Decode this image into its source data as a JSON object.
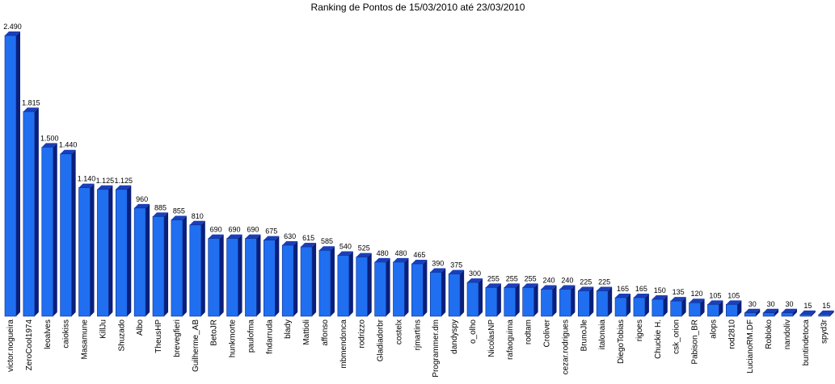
{
  "chart_data": {
    "type": "bar",
    "title": "Ranking de Pontos de 15/03/2010 até 23/03/2010",
    "xlabel": "",
    "ylabel": "",
    "ylim": [
      0,
      2490
    ],
    "grid": false,
    "legend": "none",
    "bar_color": "#1f6ff0",
    "bar_top_color": "#1a3fb8",
    "bar_side_color": "#0a1f7a",
    "categories": [
      "victor.nogueira",
      "ZeroCool1974",
      "leoalves",
      "caiokiss",
      "Masamune",
      "KillJu",
      "Shuzado",
      "Albo",
      "TheusHP",
      "brevegfieri",
      "Guilherme_AB",
      "BetoJR",
      "hunkmorte",
      "paulofma",
      "fndarruda",
      "blady",
      "Mattioli",
      "affonso",
      "mbmendonca",
      "rodrizzo",
      "Gladiadorbr",
      "costelx",
      "rjmartins",
      "Programmer.dm",
      "dandyspy",
      "o_olho",
      "NicolasNP",
      "rafaoguima",
      "rodtam",
      "Croliver",
      "cezar.rodrigues",
      "BrunoJle",
      "italonaia",
      "DiegoTobias",
      "rigoes",
      "Chuckie H.",
      "csk_orion",
      "Pabison_BR",
      "alops",
      "rod2810",
      "LucianoRM.DF",
      "Robloko",
      "nandoliv",
      "buntindetoca",
      "spyd3r"
    ],
    "values": [
      2490,
      1815,
      1500,
      1440,
      1140,
      1125,
      1125,
      960,
      885,
      855,
      810,
      690,
      690,
      690,
      675,
      630,
      615,
      585,
      540,
      525,
      480,
      480,
      465,
      390,
      375,
      300,
      255,
      255,
      255,
      240,
      240,
      225,
      225,
      165,
      165,
      150,
      135,
      120,
      105,
      105,
      30,
      30,
      30,
      15,
      15
    ],
    "value_labels": [
      "2.490",
      "1.815",
      "1.500",
      "1.440",
      "1.140",
      "1.125",
      "1.125",
      "960",
      "885",
      "855",
      "810",
      "690",
      "690",
      "690",
      "675",
      "630",
      "615",
      "585",
      "540",
      "525",
      "480",
      "480",
      "465",
      "390",
      "375",
      "300",
      "255",
      "255",
      "255",
      "240",
      "240",
      "225",
      "225",
      "165",
      "165",
      "150",
      "135",
      "120",
      "105",
      "105",
      "30",
      "30",
      "30",
      "15",
      "15"
    ]
  }
}
